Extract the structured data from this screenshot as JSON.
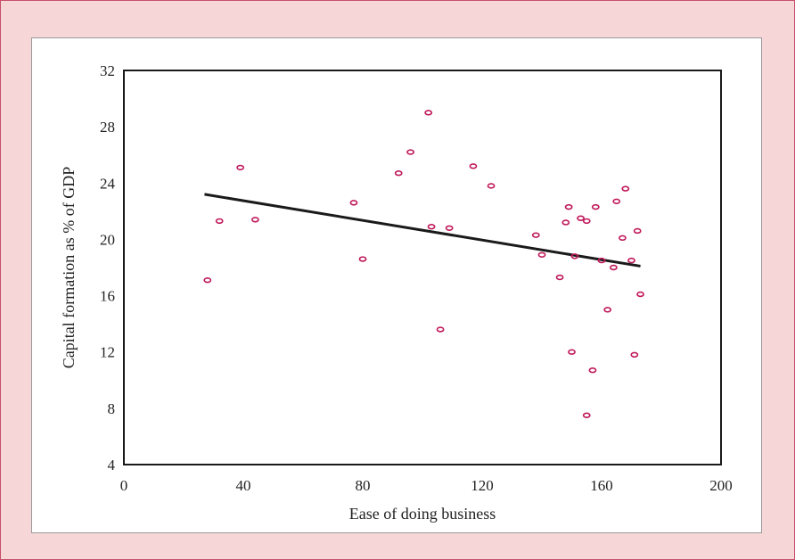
{
  "colors": {
    "background": "#f6d6d6",
    "border": "#c8506a",
    "panel": "#ffffff",
    "marker": "#c0185a",
    "trend_line": "#1a1a1a"
  },
  "chart_data": {
    "type": "scatter",
    "title": "",
    "xlabel": "Ease of doing business",
    "ylabel": "Capital formation as % of GDP",
    "xlim": [
      0,
      200
    ],
    "ylim": [
      4,
      32
    ],
    "xticks": [
      0,
      40,
      80,
      120,
      160,
      200
    ],
    "yticks": [
      4,
      8,
      12,
      16,
      20,
      24,
      28,
      32
    ],
    "grid": false,
    "legend": "none",
    "points": [
      [
        28,
        17.1
      ],
      [
        32,
        21.3
      ],
      [
        39,
        25.1
      ],
      [
        44,
        21.4
      ],
      [
        77,
        22.6
      ],
      [
        80,
        18.6
      ],
      [
        92,
        24.7
      ],
      [
        96,
        26.2
      ],
      [
        102,
        29.0
      ],
      [
        103,
        20.9
      ],
      [
        106,
        13.6
      ],
      [
        109,
        20.8
      ],
      [
        117,
        25.2
      ],
      [
        123,
        23.8
      ],
      [
        138,
        20.3
      ],
      [
        140,
        18.9
      ],
      [
        146,
        17.3
      ],
      [
        148,
        21.2
      ],
      [
        149,
        22.3
      ],
      [
        150,
        12.0
      ],
      [
        151,
        18.8
      ],
      [
        153,
        21.5
      ],
      [
        155,
        21.3
      ],
      [
        155,
        7.5
      ],
      [
        157,
        10.7
      ],
      [
        158,
        22.3
      ],
      [
        160,
        18.5
      ],
      [
        162,
        15.0
      ],
      [
        164,
        18.0
      ],
      [
        165,
        22.7
      ],
      [
        167,
        20.1
      ],
      [
        168,
        23.6
      ],
      [
        170,
        18.5
      ],
      [
        171,
        11.8
      ],
      [
        172,
        20.6
      ],
      [
        173,
        16.1
      ]
    ],
    "trend_line": {
      "x": [
        27,
        173
      ],
      "y": [
        23.2,
        18.1
      ]
    }
  }
}
